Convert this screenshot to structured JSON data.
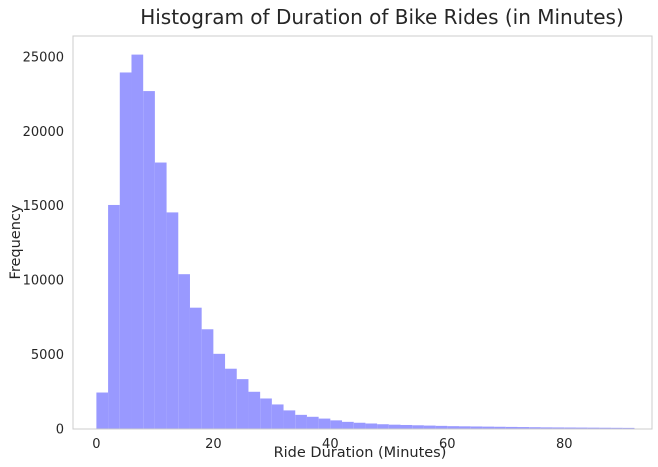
{
  "chart_data": {
    "type": "bar",
    "subtype": "histogram",
    "title": "Histogram of Duration of Bike Rides (in Minutes)",
    "xlabel": "Ride Duration (Minutes)",
    "ylabel": "Frequency",
    "xlim": [
      -4,
      95
    ],
    "ylim": [
      0,
      26400
    ],
    "xticks": [
      0,
      20,
      40,
      60,
      80
    ],
    "yticks": [
      0,
      5000,
      10000,
      15000,
      20000,
      25000
    ],
    "grid": false,
    "bar_color": "#9999ff",
    "bins": {
      "start": 0,
      "width": 2,
      "counts": [
        2450,
        15050,
        23950,
        25150,
        22700,
        17900,
        14550,
        10400,
        8150,
        6700,
        5050,
        4050,
        3350,
        2500,
        2050,
        1650,
        1250,
        950,
        820,
        700,
        580,
        480,
        420,
        370,
        320,
        290,
        270,
        250,
        230,
        210,
        190,
        180,
        170,
        160,
        150,
        140,
        130,
        120,
        110,
        105,
        100,
        95,
        90,
        85,
        80,
        75
      ]
    }
  }
}
